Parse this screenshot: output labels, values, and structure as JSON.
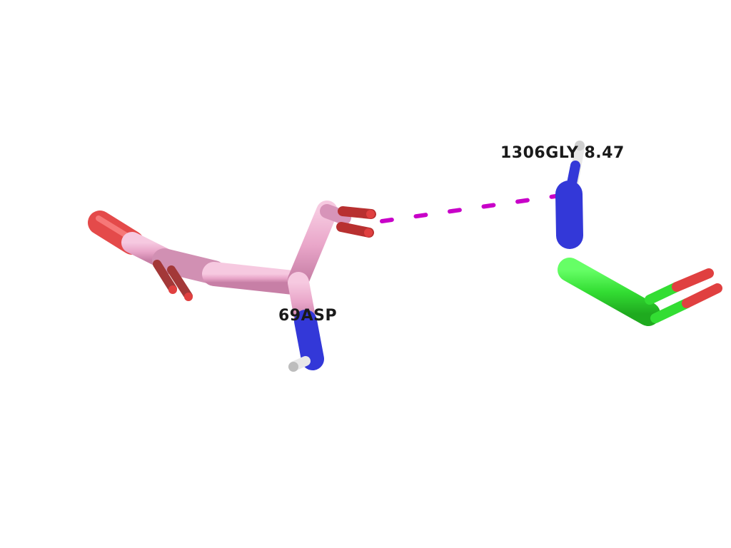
{
  "residues": [
    {
      "label": "69ASP",
      "carbon_color": "#e9a6c9"
    },
    {
      "label": "1306GLY 8.47",
      "carbon_color": "#33dd33"
    }
  ],
  "colors": {
    "oxygen": "#e03030",
    "nitrogen": "#2f33cc",
    "hydrogen": "#e8e8e8",
    "hbond": "#c800c8"
  }
}
